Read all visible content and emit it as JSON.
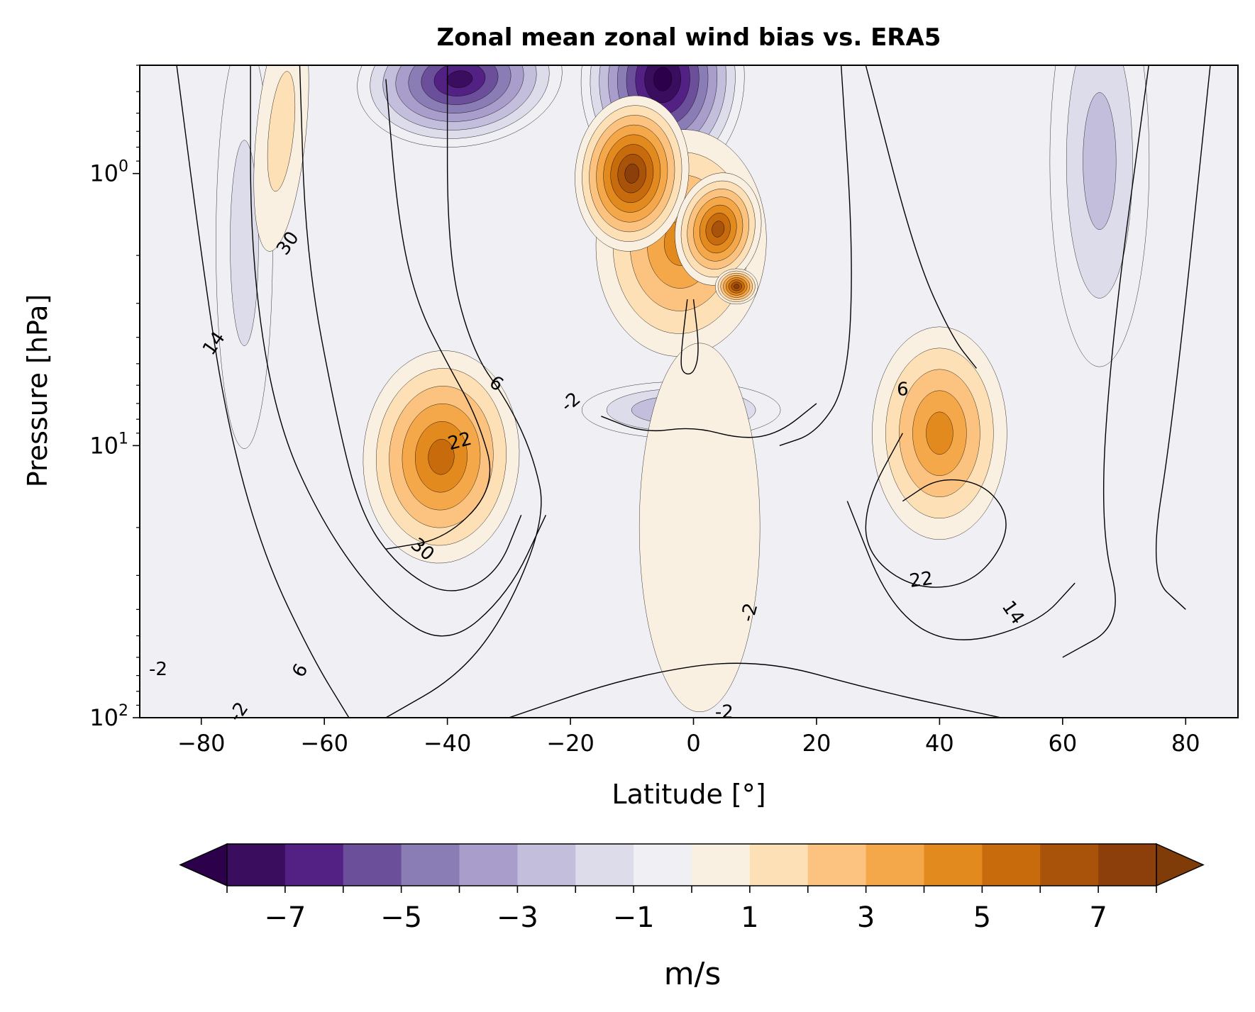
{
  "chart_data": {
    "type": "contour",
    "title": "Zonal mean zonal wind bias vs. ERA5",
    "xlabel": "Latitude [°]",
    "ylabel": "Pressure [hPa]",
    "xlim": [
      -90,
      88.5
    ],
    "ylim_log": [
      100,
      0.4
    ],
    "y_scale": "log",
    "x_ticks": [
      {
        "value": -80,
        "label": "−80"
      },
      {
        "value": -60,
        "label": "−60"
      },
      {
        "value": -40,
        "label": "−40"
      },
      {
        "value": -20,
        "label": "−20"
      },
      {
        "value": 0,
        "label": "0"
      },
      {
        "value": 20,
        "label": "20"
      },
      {
        "value": 40,
        "label": "40"
      },
      {
        "value": 60,
        "label": "60"
      },
      {
        "value": 80,
        "label": "80"
      }
    ],
    "y_ticks": [
      {
        "value": 1,
        "base": "10",
        "exp": "0"
      },
      {
        "value": 10,
        "base": "10",
        "exp": "1"
      },
      {
        "value": 100,
        "base": "10",
        "exp": "2"
      }
    ],
    "bias_features": [
      {
        "lat": -5,
        "p": 0.45,
        "value": -8.5
      },
      {
        "lat": -38,
        "p": 0.45,
        "value": -7.5
      },
      {
        "lat": -2,
        "p": 1.8,
        "value": 4.5
      },
      {
        "lat": -10,
        "p": 1.0,
        "value": 7.5
      },
      {
        "lat": 4,
        "p": 1.6,
        "value": 6.5
      },
      {
        "lat": 7,
        "p": 2.6,
        "value": 7.2
      },
      {
        "lat": -41,
        "p": 11,
        "value": 5.3
      },
      {
        "lat": 40,
        "p": 9,
        "value": 4.3
      },
      {
        "lat": -2,
        "p": 7.4,
        "value": -3.3
      },
      {
        "lat": -73,
        "p": 1.8,
        "value": -2.0
      },
      {
        "lat": 66,
        "p": 0.9,
        "value": -3.0
      },
      {
        "lat": -67,
        "p": 0.7,
        "value": 1.5
      },
      {
        "lat": 1,
        "p": 20,
        "value": 1.0
      }
    ],
    "wind_contour_labels": [
      {
        "text": "30",
        "lat": -66,
        "p": 1.8,
        "rot": -55
      },
      {
        "text": "14",
        "lat": -78,
        "p": 4.2,
        "rot": -55
      },
      {
        "text": "6",
        "lat": -32,
        "p": 5.9,
        "rot": 35
      },
      {
        "text": "-2",
        "lat": -20,
        "p": 6.9,
        "rot": -40
      },
      {
        "text": "22",
        "lat": -38,
        "p": 9.6,
        "rot": -15
      },
      {
        "text": "30",
        "lat": -44,
        "p": 24,
        "rot": 40
      },
      {
        "text": "6",
        "lat": -64,
        "p": 67,
        "rot": -60
      },
      {
        "text": "-2",
        "lat": 9,
        "p": 41,
        "rot": -75
      },
      {
        "text": "6",
        "lat": 34,
        "p": 6.2,
        "rot": 0
      },
      {
        "text": "22",
        "lat": 37,
        "p": 31,
        "rot": -8
      },
      {
        "text": "14",
        "lat": 52,
        "p": 41,
        "rot": 55
      },
      {
        "text": "-2",
        "lat": 5,
        "p": 95,
        "rot": 0
      },
      {
        "text": "-2",
        "lat": -74,
        "p": 95,
        "rot": -55
      },
      {
        "text": "-2",
        "lat": -87,
        "p": 66,
        "rot": 0
      }
    ],
    "colorbar": {
      "label": "m/s",
      "levels": [
        -8,
        -7,
        -6,
        -5,
        -4,
        -3,
        -2,
        -1,
        0,
        1,
        2,
        3,
        4,
        5,
        6,
        7,
        8
      ],
      "tick_labels": [
        {
          "value": -7,
          "label": "−7"
        },
        {
          "value": -5,
          "label": "−5"
        },
        {
          "value": -3,
          "label": "−3"
        },
        {
          "value": -1,
          "label": "−1"
        },
        {
          "value": 1,
          "label": "1"
        },
        {
          "value": 3,
          "label": "3"
        },
        {
          "value": 5,
          "label": "5"
        },
        {
          "value": 7,
          "label": "7"
        }
      ],
      "extend": "both",
      "under_color": "#2d004b",
      "over_color": "#7f3b08",
      "colors": [
        "#3b0d5e",
        "#532084",
        "#6b4f9a",
        "#8a7db5",
        "#a99dcb",
        "#c3bedc",
        "#dcdcea",
        "#efeff4",
        "#f9f0e2",
        "#fde0b6",
        "#fbc37f",
        "#f5a84a",
        "#e38a1f",
        "#c86b0c",
        "#a8520a",
        "#8c3f0a"
      ]
    }
  }
}
